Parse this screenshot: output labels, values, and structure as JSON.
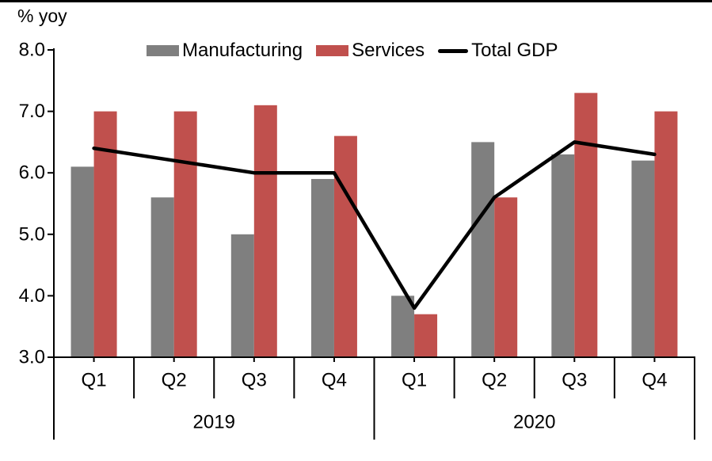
{
  "figure": {
    "axis_title": "% yoy",
    "background": "#ffffff",
    "top_border_color": "#000000"
  },
  "legend": {
    "position": "top",
    "items": [
      {
        "label": "Manufacturing",
        "swatch": "bar",
        "color": "#7F7F7F"
      },
      {
        "label": "Services",
        "swatch": "bar",
        "color": "#C0504D"
      },
      {
        "label": "Total GDP",
        "swatch": "line",
        "color": "#000000"
      }
    ]
  },
  "chart_data": {
    "type": "bar+line",
    "title": "",
    "xlabel": "",
    "ylabel": "% yoy",
    "ylim": [
      3.0,
      8.0
    ],
    "y_tick_step": 1.0,
    "y_tick_labels": [
      "8.0",
      "7.0",
      "6.0",
      "5.0",
      "4.0",
      "3.0"
    ],
    "grid": false,
    "legend_position": "top",
    "categories": [
      "Q1",
      "Q2",
      "Q3",
      "Q4",
      "Q1",
      "Q2",
      "Q3",
      "Q4"
    ],
    "year_groups": [
      {
        "label": "2019",
        "span": 4
      },
      {
        "label": "2020",
        "span": 4
      }
    ],
    "series": [
      {
        "name": "Manufacturing",
        "type": "bar",
        "color": "#7F7F7F",
        "values": [
          6.1,
          5.6,
          5.0,
          5.9,
          4.0,
          6.5,
          6.3,
          6.2
        ]
      },
      {
        "name": "Services",
        "type": "bar",
        "color": "#C0504D",
        "values": [
          7.0,
          7.0,
          7.1,
          6.6,
          3.7,
          5.6,
          7.3,
          7.0
        ]
      },
      {
        "name": "Total GDP",
        "type": "line",
        "color": "#000000",
        "values": [
          6.4,
          6.2,
          6.0,
          6.0,
          3.8,
          5.6,
          6.5,
          6.3
        ]
      }
    ]
  }
}
